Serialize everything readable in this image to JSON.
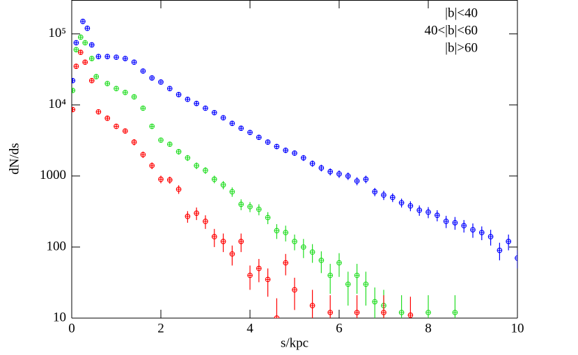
{
  "chart_data": {
    "type": "scatter",
    "xlabel": "s/kpc",
    "ylabel": "dN/ds",
    "xlim": [
      0,
      10
    ],
    "xticks": [
      0,
      2,
      4,
      6,
      8,
      10
    ],
    "ylim": [
      10,
      300000
    ],
    "ylog": true,
    "yticks": [
      10,
      100,
      1000,
      {
        "value": 10000,
        "label": "10⁴"
      },
      {
        "value": 100000,
        "label": "10⁵"
      }
    ],
    "legend": "upper right",
    "series": [
      {
        "name": "|b|<40",
        "color": "#0000ff",
        "x": [
          0.02,
          0.1,
          0.25,
          0.35,
          0.45,
          0.6,
          0.8,
          1.0,
          1.2,
          1.4,
          1.6,
          1.8,
          2.0,
          2.2,
          2.4,
          2.6,
          2.8,
          3.0,
          3.2,
          3.4,
          3.6,
          3.8,
          4.0,
          4.2,
          4.4,
          4.6,
          4.8,
          5.0,
          5.2,
          5.4,
          5.6,
          5.8,
          6.0,
          6.2,
          6.4,
          6.6,
          6.8,
          7.0,
          7.2,
          7.4,
          7.6,
          7.8,
          8.0,
          8.2,
          8.4,
          8.6,
          8.8,
          9.0,
          9.2,
          9.4,
          9.6,
          9.8,
          10.0
        ],
        "values": [
          22000,
          75000,
          150000,
          120000,
          70000,
          48000,
          48000,
          47000,
          45000,
          40000,
          30000,
          24000,
          21000,
          17000,
          14000,
          12000,
          10500,
          9000,
          7800,
          6600,
          5500,
          4700,
          4100,
          3500,
          3000,
          2600,
          2300,
          2100,
          1800,
          1500,
          1300,
          1150,
          1070,
          1000,
          850,
          900,
          600,
          540,
          500,
          420,
          380,
          330,
          310,
          280,
          230,
          220,
          200,
          175,
          160,
          140,
          90,
          120,
          70
        ],
        "errors": [
          1500,
          4000,
          6000,
          5000,
          3500,
          2000,
          2000,
          2000,
          2000,
          1800,
          1500,
          1200,
          1000,
          900,
          800,
          700,
          600,
          500,
          450,
          400,
          350,
          300,
          300,
          250,
          250,
          200,
          200,
          180,
          170,
          150,
          140,
          130,
          130,
          120,
          110,
          110,
          80,
          80,
          70,
          60,
          60,
          55,
          55,
          50,
          45,
          45,
          40,
          40,
          35,
          35,
          25,
          30,
          20
        ]
      },
      {
        "name": "40<|b|<60",
        "color": "#22dd22",
        "x": [
          0.02,
          0.1,
          0.2,
          0.3,
          0.45,
          0.55,
          0.8,
          1.0,
          1.2,
          1.4,
          1.6,
          1.8,
          2.0,
          2.2,
          2.4,
          2.6,
          2.8,
          3.0,
          3.2,
          3.4,
          3.6,
          3.8,
          4.0,
          4.2,
          4.4,
          4.6,
          4.8,
          5.0,
          5.2,
          5.4,
          5.6,
          5.8,
          6.0,
          6.2,
          6.4,
          6.6,
          6.8,
          7.0,
          7.4,
          8.0,
          8.6
        ],
        "values": [
          16000,
          60000,
          90000,
          75000,
          45000,
          25000,
          20000,
          17000,
          15000,
          13000,
          9000,
          5000,
          3200,
          2800,
          2200,
          1800,
          1400,
          1200,
          900,
          750,
          600,
          400,
          370,
          340,
          260,
          170,
          160,
          120,
          100,
          85,
          65,
          40,
          60,
          30,
          40,
          30,
          17,
          15,
          12,
          12,
          12
        ],
        "errors": [
          1200,
          3500,
          5000,
          4000,
          3000,
          1500,
          1200,
          1000,
          900,
          800,
          600,
          400,
          250,
          230,
          200,
          170,
          150,
          130,
          110,
          100,
          90,
          70,
          60,
          60,
          50,
          40,
          40,
          30,
          30,
          25,
          22,
          18,
          22,
          15,
          18,
          15,
          10,
          10,
          9,
          9,
          9
        ]
      },
      {
        "name": "|b|>60",
        "color": "#ff0000",
        "x": [
          0.02,
          0.1,
          0.2,
          0.3,
          0.45,
          0.6,
          0.8,
          1.0,
          1.2,
          1.4,
          1.6,
          1.8,
          2.0,
          2.2,
          2.4,
          2.6,
          2.8,
          3.0,
          3.2,
          3.4,
          3.6,
          3.8,
          4.0,
          4.2,
          4.4,
          4.6,
          4.8,
          5.0,
          5.4,
          5.8,
          6.4,
          7.0,
          7.6
        ],
        "values": [
          8600,
          35000,
          55000,
          40000,
          22000,
          8000,
          6500,
          5000,
          4300,
          3000,
          2000,
          1400,
          900,
          880,
          650,
          270,
          300,
          230,
          140,
          120,
          80,
          120,
          40,
          50,
          35,
          10,
          60,
          25,
          15,
          12,
          12,
          12,
          11
        ],
        "errors": [
          600,
          2500,
          3500,
          2500,
          1500,
          600,
          500,
          400,
          350,
          300,
          200,
          150,
          110,
          100,
          90,
          50,
          60,
          50,
          40,
          35,
          25,
          35,
          15,
          18,
          15,
          9,
          20,
          12,
          10,
          9,
          9,
          9,
          9
        ]
      }
    ]
  }
}
